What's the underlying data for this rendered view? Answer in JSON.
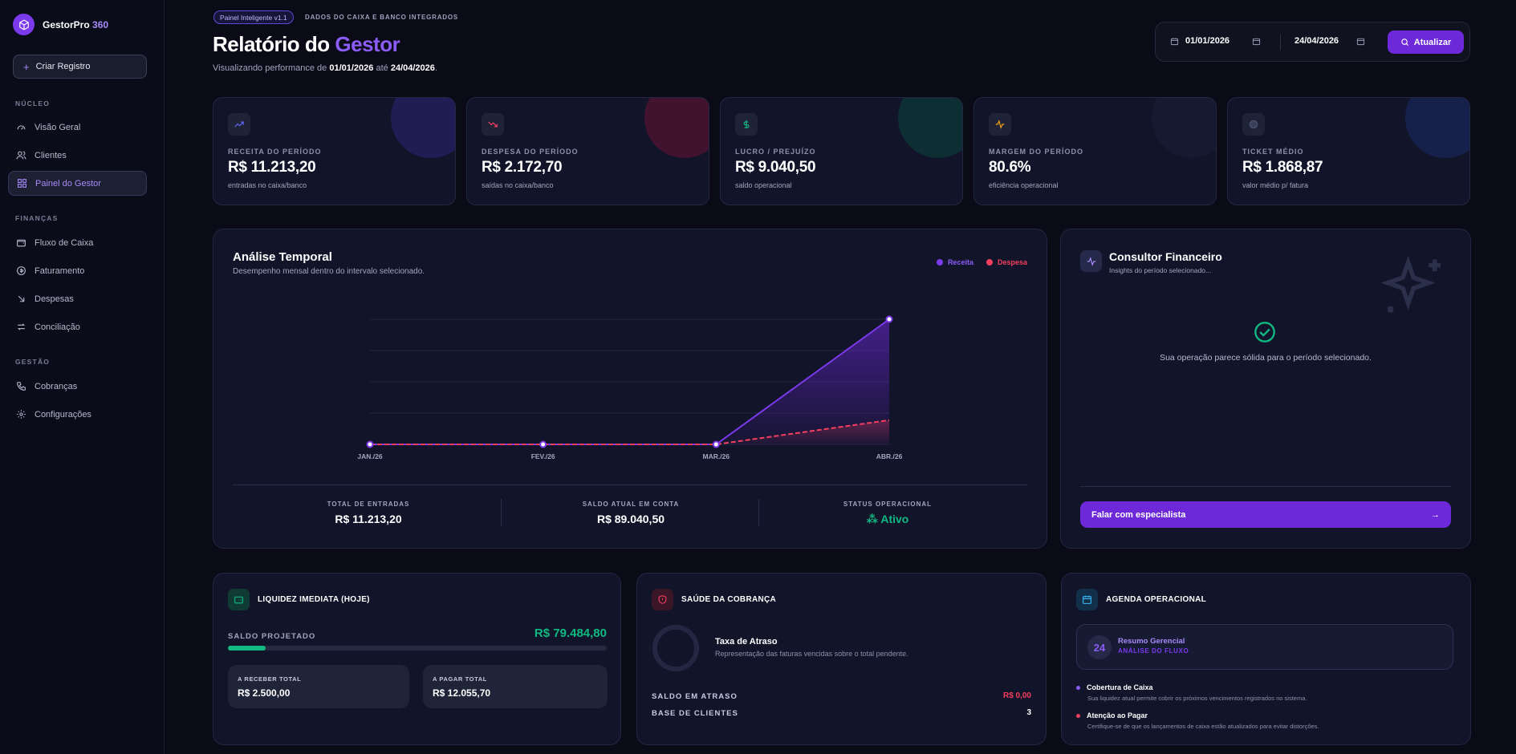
{
  "sidebar": {
    "brand": {
      "name": "GestorPro",
      "suffix": "360"
    },
    "create_label": "Criar Registro",
    "sections": [
      {
        "label": "NÚCLEO",
        "items": [
          "Visão Geral",
          "Clientes",
          "Painel do Gestor"
        ]
      },
      {
        "label": "FINANÇAS",
        "items": [
          "Fluxo de Caixa",
          "Faturamento",
          "Despesas",
          "Conciliação"
        ]
      },
      {
        "label": "GESTÃO",
        "items": [
          "Cobranças",
          "Configurações"
        ]
      }
    ],
    "active_item": "Painel do Gestor"
  },
  "header": {
    "badge": "Painel Inteligente v1.1",
    "badge_sub": "DADOS DO CAIXA E BANCO INTEGRADOS",
    "title_prefix": "Relatório do",
    "title_accent": "Gestor",
    "subtitle_prefix": "Visualizando performance de",
    "start": "01/01/2026",
    "subtitle_mid": "até",
    "end": "24/04/2026",
    "subtitle_end": "."
  },
  "date_range": {
    "from": "01/01/2026",
    "to": "24/04/2026",
    "refresh_label": "Atualizar"
  },
  "kpis": [
    {
      "label": "RECEITA DO PERÍODO",
      "value": "R$ 11.213,20",
      "note": "entradas no caixa/banco",
      "icon": "trending-up-icon",
      "color": "#6366f1"
    },
    {
      "label": "DESPESA DO PERÍODO",
      "value": "R$ 2.172,70",
      "note": "saídas no caixa/banco",
      "icon": "trending-down-icon",
      "color": "#f43f5e"
    },
    {
      "label": "LUCRO / PREJUÍZO",
      "value": "R$ 9.040,50",
      "note": "saldo operacional",
      "icon": "dollar-icon",
      "color": "#10b981"
    },
    {
      "label": "MARGEM DO PERÍODO",
      "value": "80.6%",
      "note": "eficiência operacional",
      "icon": "activity-icon",
      "color": "#f59e0b"
    },
    {
      "label": "TICKET MÉDIO",
      "value": "R$ 1.868,87",
      "note": "valor médio p/ fatura",
      "icon": "receipt-icon",
      "color": "#3b82f6"
    }
  ],
  "temporal": {
    "title": "Análise Temporal",
    "subtitle": "Desempenho mensal dentro do intervalo selecionado.",
    "stats": [
      {
        "label": "TOTAL DE ENTRADAS",
        "value": "R$ 11.213,20"
      },
      {
        "label": "SALDO ATUAL EM CONTA",
        "value": "R$ 89.040,50"
      },
      {
        "label": "STATUS OPERACIONAL",
        "value": "Ativo"
      }
    ]
  },
  "chart_data": {
    "type": "line",
    "categories": [
      "JAN./26",
      "FEV./26",
      "MAR./26",
      "ABR./26"
    ],
    "series": [
      {
        "name": "Receita",
        "color": "#7c3aed",
        "values": [
          0,
          0,
          0,
          11213.2
        ]
      },
      {
        "name": "Despesa",
        "color": "#f43f5e",
        "values": [
          0,
          0,
          0,
          2172.7
        ]
      }
    ],
    "ylim": [
      0,
      11213.2
    ],
    "grid": true,
    "legend": "top-right"
  },
  "consultant": {
    "title": "Consultor Financeiro",
    "subtitle": "Insights do período selecionado...",
    "message": "Sua operação parece sólida para o período selecionado.",
    "cta": "Falar com especialista"
  },
  "liquidity": {
    "title": "LIQUIDEZ IMEDIATA (HOJE)",
    "projected_label": "SALDO PROJETADO",
    "projected_value": "R$ 79.484,80",
    "progress": 0.1,
    "receivable_label": "A RECEBER TOTAL",
    "receivable_value": "R$ 2.500,00",
    "payable_label": "A PAGAR TOTAL",
    "payable_value": "R$ 12.055,70"
  },
  "collection": {
    "title": "SAÚDE DA COBRANÇA",
    "rate_title": "Taxa de Atraso",
    "rate_desc": "Representação das faturas vencidas sobre o total pendente.",
    "overdue_label": "SALDO EM ATRASO",
    "overdue_value": "R$ 0,00",
    "clients_label": "BASE DE CLIENTES",
    "clients_value": "3"
  },
  "agenda": {
    "title": "AGENDA OPERACIONAL",
    "day": "24",
    "summary_title": "Resumo Gerencial",
    "summary_sub": "ANÁLISE DO FLUXO",
    "items": [
      {
        "title": "Cobertura de Caixa",
        "desc": "Sua liquidez atual permite cobrir os próximos vencimentos registrados no sistema.",
        "color": "#8b5cf6"
      },
      {
        "title": "Atenção ao Pagar",
        "desc": "Certifique-se de que os lançamentos de caixa estão atualizados para evitar distorções.",
        "color": "#f43f5e"
      }
    ]
  }
}
